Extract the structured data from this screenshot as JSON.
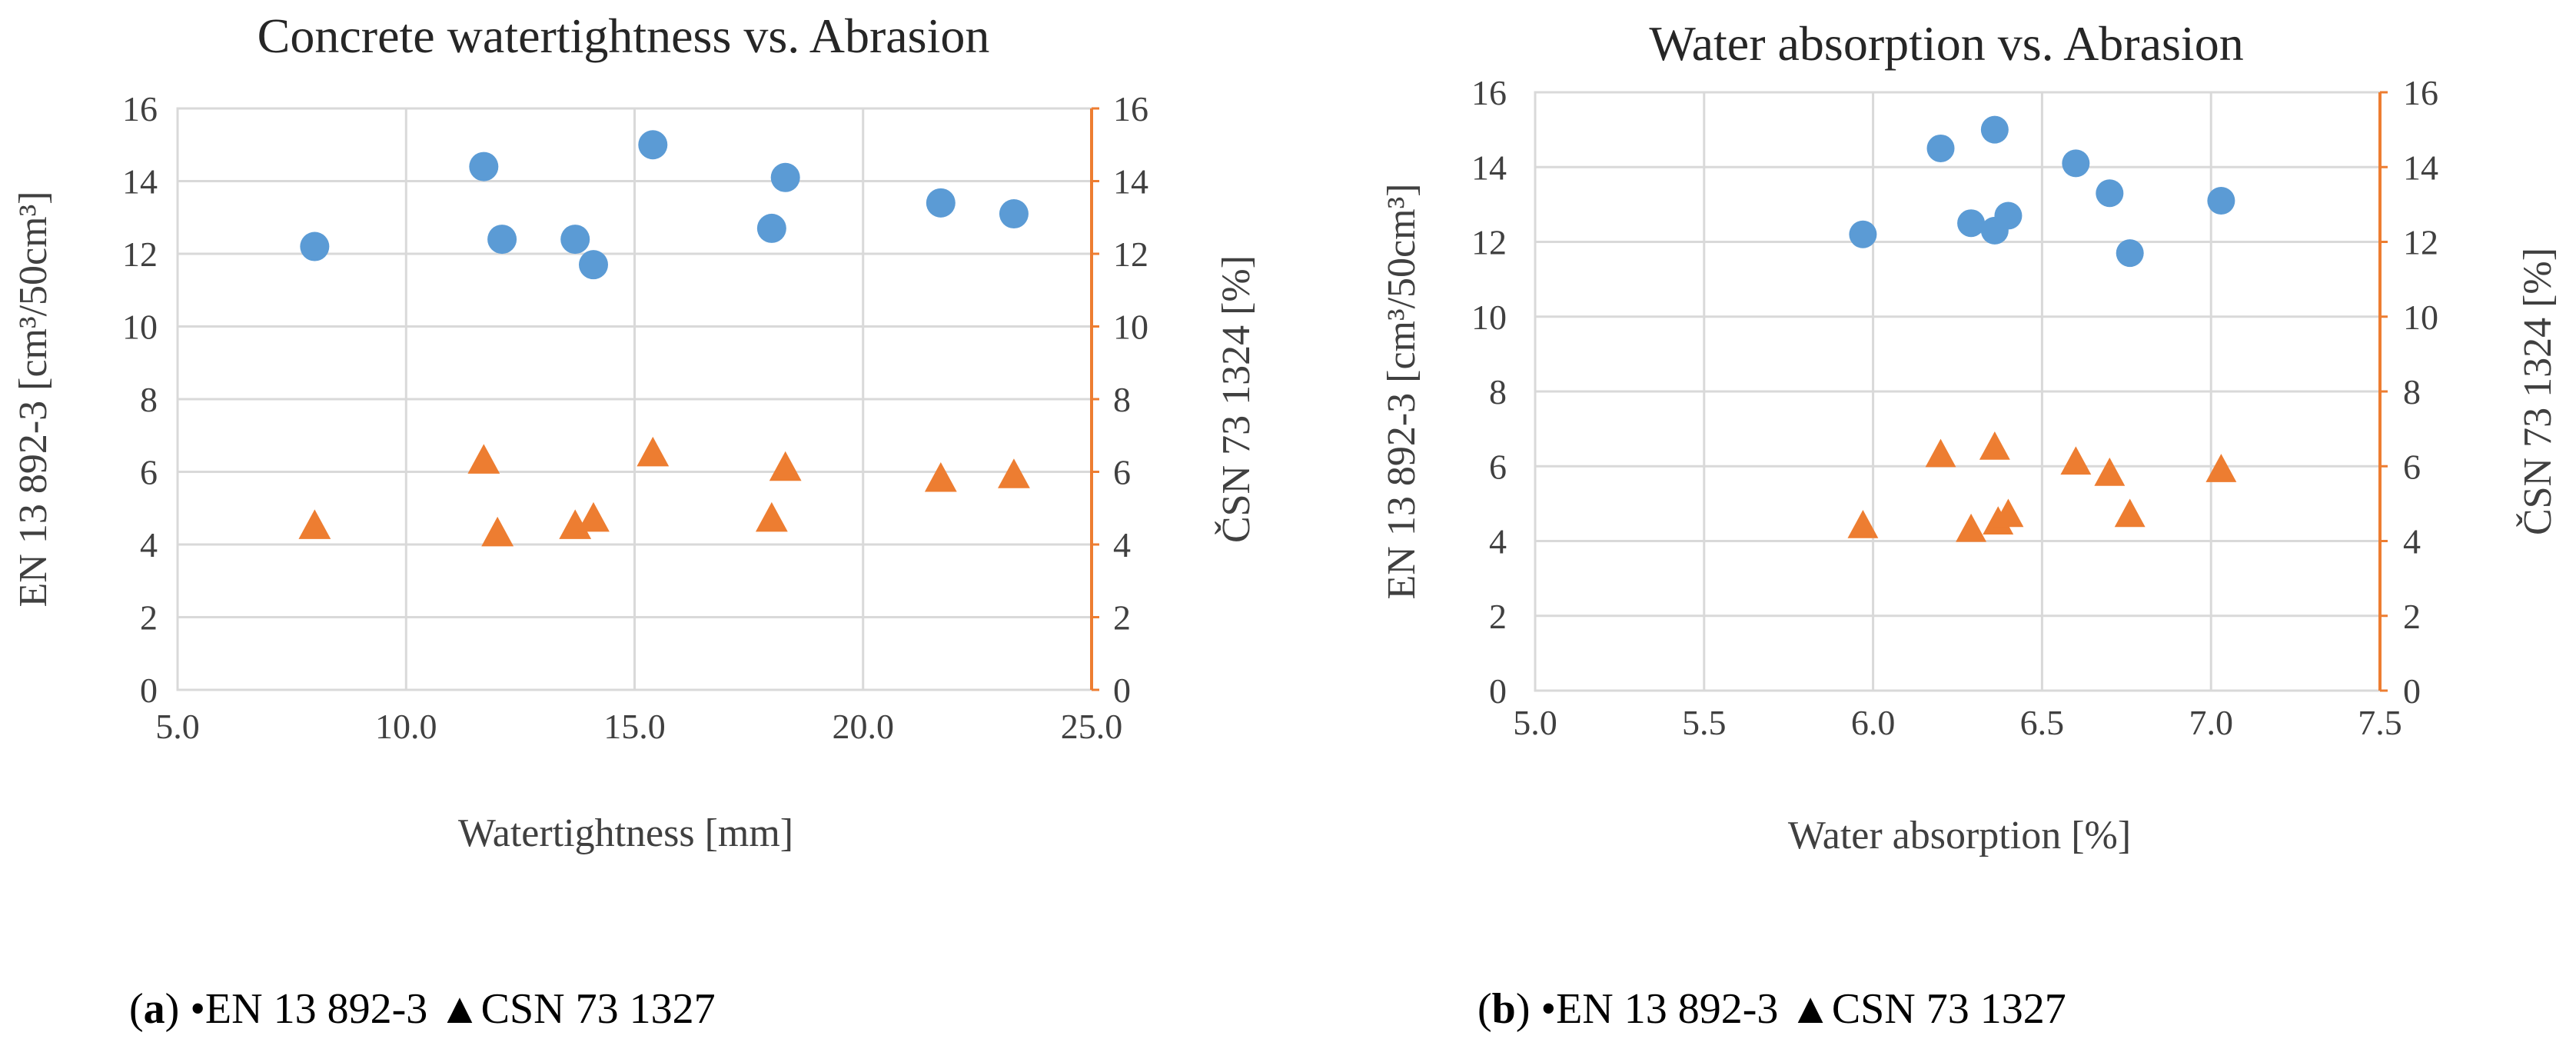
{
  "chart_data": [
    {
      "id": "a",
      "type": "scatter",
      "title": "Concrete watertightness vs. Abrasion",
      "xlabel": "Watertightness [mm]",
      "ylabel_left": "EN 13 892-3 [cm³/50cm³]",
      "ylabel_right": "ČSN 73 1324 [%]",
      "xlim": [
        5.0,
        25.0
      ],
      "xticks": [
        "5.0",
        "10.0",
        "15.0",
        "20.0",
        "25.0"
      ],
      "ylim_left": [
        0,
        16
      ],
      "ylim_right": [
        0,
        16
      ],
      "yticks": [
        "0",
        "2",
        "4",
        "6",
        "8",
        "10",
        "12",
        "14",
        "16"
      ],
      "series": [
        {
          "name": "EN 13 892-3",
          "marker": "circle",
          "color": "#5b9bd5",
          "axis": "left",
          "points": [
            [
              8.0,
              12.2
            ],
            [
              11.7,
              14.4
            ],
            [
              12.1,
              12.4
            ],
            [
              13.7,
              12.4
            ],
            [
              14.1,
              11.7
            ],
            [
              15.4,
              15.0
            ],
            [
              18.0,
              12.7
            ],
            [
              18.3,
              14.1
            ],
            [
              21.7,
              13.4
            ],
            [
              23.3,
              13.1
            ]
          ]
        },
        {
          "name": "CSN 73 1327",
          "marker": "triangle",
          "color": "#ed7d31",
          "axis": "right",
          "points": [
            [
              8.0,
              4.5
            ],
            [
              11.7,
              6.3
            ],
            [
              12.0,
              4.3
            ],
            [
              13.7,
              4.5
            ],
            [
              14.1,
              4.7
            ],
            [
              15.4,
              6.5
            ],
            [
              18.0,
              4.7
            ],
            [
              18.3,
              6.1
            ],
            [
              21.7,
              5.8
            ],
            [
              23.3,
              5.9
            ]
          ]
        }
      ],
      "caption": {
        "letter": "a",
        "series1": "EN 13 892-3",
        "series2": "CSN 73 1327"
      }
    },
    {
      "id": "b",
      "type": "scatter",
      "title": "Water absorption vs. Abrasion",
      "xlabel": "Water absorption [%]",
      "ylabel_left": "EN 13 892-3 [cm³/50cm³]",
      "ylabel_right": "ČSN 73 1324 [%]",
      "xlim": [
        5.0,
        7.5
      ],
      "xticks": [
        "5.0",
        "5.5",
        "6.0",
        "6.5",
        "7.0",
        "7.5"
      ],
      "ylim_left": [
        0,
        16
      ],
      "ylim_right": [
        0,
        16
      ],
      "yticks": [
        "0",
        "2",
        "4",
        "6",
        "8",
        "10",
        "12",
        "14",
        "16"
      ],
      "series": [
        {
          "name": "EN 13 892-3",
          "marker": "circle",
          "color": "#5b9bd5",
          "axis": "left",
          "points": [
            [
              5.97,
              12.2
            ],
            [
              6.2,
              14.5
            ],
            [
              6.29,
              12.5
            ],
            [
              6.36,
              15.0
            ],
            [
              6.36,
              12.3
            ],
            [
              6.4,
              12.7
            ],
            [
              6.6,
              14.1
            ],
            [
              6.7,
              13.3
            ],
            [
              6.76,
              11.7
            ],
            [
              7.03,
              13.1
            ]
          ]
        },
        {
          "name": "CSN 73 1327",
          "marker": "triangle",
          "color": "#ed7d31",
          "axis": "right",
          "points": [
            [
              5.97,
              4.4
            ],
            [
              6.2,
              6.3
            ],
            [
              6.29,
              4.3
            ],
            [
              6.36,
              6.5
            ],
            [
              6.37,
              4.5
            ],
            [
              6.4,
              4.7
            ],
            [
              6.6,
              6.1
            ],
            [
              6.7,
              5.8
            ],
            [
              6.76,
              4.7
            ],
            [
              7.03,
              5.9
            ]
          ]
        }
      ],
      "caption": {
        "letter": "b",
        "series1": "EN 13 892-3",
        "series2": "CSN 73 1327"
      }
    }
  ]
}
